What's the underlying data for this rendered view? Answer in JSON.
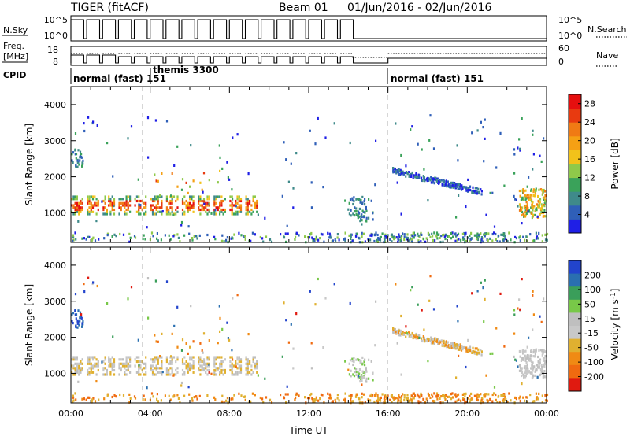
{
  "header": {
    "title": "TIGER (fitACF)",
    "beam_label": "Beam 01",
    "date_range": "01/Jun/2016 - 02/Jun/2016"
  },
  "colors": {
    "power_scale": [
      "#1f1fe6",
      "#2f5fb8",
      "#3f8a8a",
      "#3aa25a",
      "#8fc94a",
      "#f2c21a",
      "#f5a014",
      "#f07a14",
      "#e83a10",
      "#e60f0f"
    ],
    "velocity_scale": [
      "#2244cc",
      "#2a6fb0",
      "#3a9e5a",
      "#78c848",
      "#bfbfbf",
      "#c8c8c8",
      "#e0b030",
      "#f08a14",
      "#f06a10",
      "#e01a10"
    ]
  },
  "chart_data": [
    {
      "type": "line",
      "title": "",
      "left_label": "N.Sky",
      "right_label": "N.Search",
      "left_ticks": [
        "10^5",
        "10^0"
      ],
      "right_ticks": [
        "10^5",
        "10^0"
      ]
    },
    {
      "type": "line",
      "left_label_top": "Freq.",
      "left_label_bottom": "[MHz]",
      "left_ticks": [
        "18",
        "8"
      ],
      "right_label": "Nave",
      "right_ticks": [
        "60",
        "0"
      ]
    },
    {
      "type": "table",
      "label": "CPID",
      "segments": [
        {
          "label": "normal (fast) 151",
          "start_hour": 0,
          "end_hour": 16
        },
        {
          "label": "themis 3300",
          "start_hour": 3.6,
          "end_hour": 3.6
        },
        {
          "label": "normal (fast) 151",
          "start_hour": 16,
          "end_hour": 24
        }
      ]
    },
    {
      "type": "heatmap",
      "quantity": "Power",
      "ylabel": "Slant Range [km]",
      "xlim": [
        0,
        24
      ],
      "ylim": [
        180,
        4500
      ],
      "yticks": [
        "1000",
        "2000",
        "3000",
        "4000"
      ],
      "colorbar_label": "Power [dB]",
      "colorbar_ticks": [
        "4",
        "8",
        "12",
        "16",
        "20",
        "24",
        "28"
      ],
      "colorbar_range": [
        0,
        30
      ]
    },
    {
      "type": "heatmap",
      "quantity": "Velocity",
      "ylabel": "Slant Range [km]",
      "xlabel": "Time UT",
      "xlim": [
        0,
        24
      ],
      "ylim": [
        180,
        4500
      ],
      "xticks": [
        "00:00",
        "04:00",
        "08:00",
        "12:00",
        "16:00",
        "20:00",
        "00:00"
      ],
      "yticks": [
        "1000",
        "2000",
        "3000",
        "4000"
      ],
      "colorbar_label": "Velocity [m s",
      "colorbar_label_sup": "-1",
      "colorbar_label_end": "]",
      "colorbar_ticks": [
        "200",
        "100",
        "50",
        "15",
        "-15",
        "-50",
        "-100",
        "-200"
      ]
    }
  ]
}
